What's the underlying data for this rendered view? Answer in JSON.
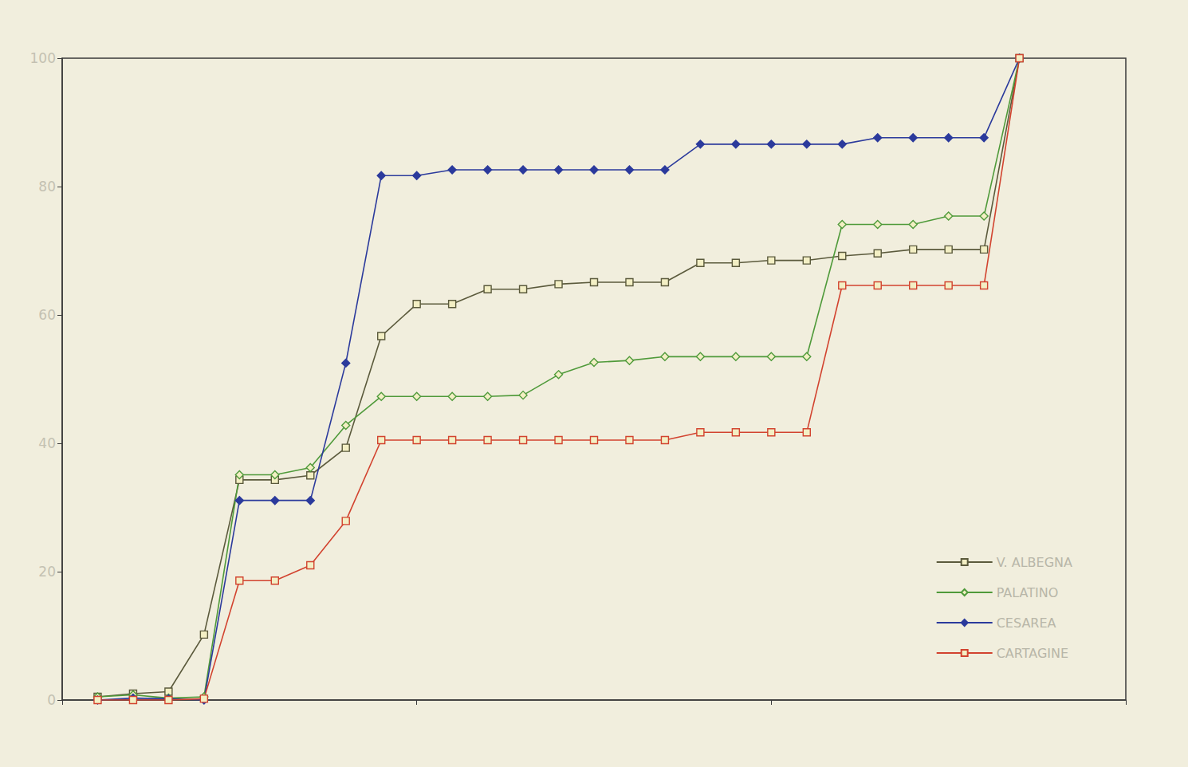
{
  "chart_data": {
    "type": "line",
    "x": [
      1,
      2,
      3,
      4,
      5,
      6,
      7,
      8,
      9,
      10,
      11,
      12,
      13,
      14,
      15,
      16,
      17,
      18,
      19,
      20,
      21,
      22,
      23,
      24,
      25,
      26,
      27
    ],
    "xlim": [
      0,
      30
    ],
    "xticks": [
      0,
      10,
      20,
      30
    ],
    "ylim": [
      0,
      100
    ],
    "yticks": [
      0,
      20,
      40,
      60,
      80,
      100
    ],
    "tick_labels": "y",
    "grid": false,
    "legend": "lower right",
    "series": [
      {
        "name": "V. ALBEGNA",
        "color": "#5b5a3c",
        "marker": "square",
        "values": [
          0.5,
          1,
          1.3,
          10.2,
          34.3,
          34.3,
          35,
          39.3,
          56.7,
          61.7,
          61.7,
          64,
          64,
          64.8,
          65.1,
          65.1,
          65.1,
          68.1,
          68.1,
          68.5,
          68.5,
          69.2,
          69.6,
          70.2,
          70.2,
          70.2,
          100
        ]
      },
      {
        "name": "PALATINO",
        "color": "#4f9a3a",
        "marker": "diamond",
        "values": [
          0.5,
          0.8,
          0.3,
          0.5,
          35.1,
          35.1,
          36.2,
          42.8,
          47.3,
          47.3,
          47.3,
          47.3,
          47.5,
          50.7,
          52.6,
          52.9,
          53.5,
          53.5,
          53.5,
          53.5,
          53.5,
          74.1,
          74.1,
          74.1,
          75.4,
          75.4,
          100
        ]
      },
      {
        "name": "CESAREA",
        "color": "#2b3a9c",
        "marker": "filled_diamond",
        "values": [
          0,
          0.3,
          0.2,
          0,
          31.1,
          31.1,
          31.1,
          52.5,
          81.7,
          81.7,
          82.6,
          82.6,
          82.6,
          82.6,
          82.6,
          82.6,
          82.6,
          86.6,
          86.6,
          86.6,
          86.6,
          86.6,
          87.6,
          87.6,
          87.6,
          87.6,
          100
        ]
      },
      {
        "name": "CARTAGINE",
        "color": "#d2432f",
        "marker": "square",
        "values": [
          0,
          0,
          0,
          0.2,
          18.6,
          18.6,
          21,
          27.9,
          40.5,
          40.5,
          40.5,
          40.5,
          40.5,
          40.5,
          40.5,
          40.5,
          40.5,
          41.7,
          41.7,
          41.7,
          41.7,
          64.6,
          64.6,
          64.6,
          64.6,
          64.6,
          100
        ]
      }
    ]
  }
}
